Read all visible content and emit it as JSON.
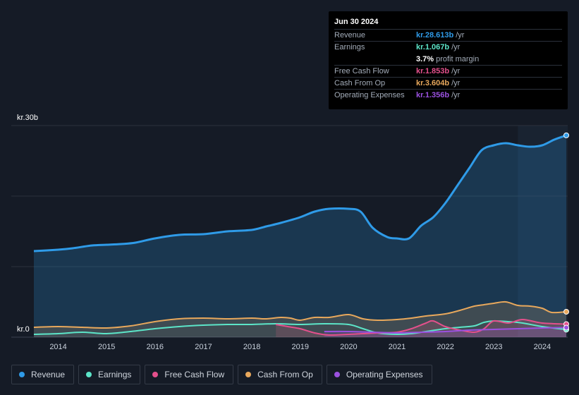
{
  "tooltip": {
    "date": "Jun 30 2024",
    "rows": [
      {
        "label": "Revenue",
        "value": "kr.28.613b",
        "unit": "/yr",
        "color": "#2f9be8"
      },
      {
        "label": "Earnings",
        "value": "kr.1.067b",
        "unit": "/yr",
        "color": "#5ce5c8"
      },
      {
        "label": "",
        "value": "3.7%",
        "unit": "profit margin",
        "color": "#ffffff"
      },
      {
        "label": "Free Cash Flow",
        "value": "kr.1.853b",
        "unit": "/yr",
        "color": "#e4508c"
      },
      {
        "label": "Cash From Op",
        "value": "kr.3.604b",
        "unit": "/yr",
        "color": "#e8a85c"
      },
      {
        "label": "Operating Expenses",
        "value": "kr.1.356b",
        "unit": "/yr",
        "color": "#9b51e0"
      }
    ]
  },
  "legend": [
    {
      "label": "Revenue",
      "color": "#2f9be8"
    },
    {
      "label": "Earnings",
      "color": "#5ce5c8"
    },
    {
      "label": "Free Cash Flow",
      "color": "#e4508c"
    },
    {
      "label": "Cash From Op",
      "color": "#e8a85c"
    },
    {
      "label": "Operating Expenses",
      "color": "#9b51e0"
    }
  ],
  "chart_data": {
    "type": "area",
    "y_top_label": "kr.30b",
    "y_bottom_label": "kr.0",
    "ylim": [
      0,
      30
    ],
    "xlim": [
      2013.5,
      2024.5
    ],
    "x_ticks": [
      "2014",
      "2015",
      "2016",
      "2017",
      "2018",
      "2019",
      "2020",
      "2021",
      "2022",
      "2023",
      "2024"
    ],
    "highlight_from": 2023.5,
    "series": [
      {
        "name": "Revenue",
        "color": "#2f9be8",
        "fill": true,
        "x": [
          2013.5,
          2014.0,
          2014.3,
          2014.7,
          2015.0,
          2015.3,
          2015.6,
          2016.0,
          2016.5,
          2017.0,
          2017.5,
          2018.0,
          2018.3,
          2018.6,
          2019.0,
          2019.3,
          2019.6,
          2020.0,
          2020.25,
          2020.5,
          2020.8,
          2021.0,
          2021.25,
          2021.5,
          2021.75,
          2022.0,
          2022.25,
          2022.5,
          2022.75,
          2023.0,
          2023.25,
          2023.5,
          2023.75,
          2024.0,
          2024.25,
          2024.5
        ],
        "values": [
          12.2,
          12.4,
          12.6,
          13.0,
          13.1,
          13.2,
          13.4,
          14.0,
          14.5,
          14.6,
          15.0,
          15.2,
          15.7,
          16.2,
          17.0,
          17.8,
          18.2,
          18.2,
          17.8,
          15.5,
          14.2,
          14.0,
          14.0,
          15.8,
          17.0,
          19.0,
          21.5,
          24.0,
          26.5,
          27.2,
          27.5,
          27.2,
          27.0,
          27.2,
          28.0,
          28.613
        ]
      },
      {
        "name": "Earnings",
        "color": "#5ce5c8",
        "fill": false,
        "x": [
          2013.5,
          2014.0,
          2014.5,
          2015.0,
          2015.5,
          2016.0,
          2016.5,
          2017.0,
          2017.5,
          2018.0,
          2018.5,
          2019.0,
          2019.5,
          2020.0,
          2020.3,
          2020.6,
          2021.0,
          2021.3,
          2021.6,
          2022.0,
          2022.3,
          2022.6,
          2022.8,
          2023.0,
          2023.3,
          2023.6,
          2024.0,
          2024.5
        ],
        "values": [
          0.4,
          0.5,
          0.7,
          0.5,
          0.8,
          1.2,
          1.5,
          1.7,
          1.8,
          1.8,
          1.9,
          1.8,
          1.9,
          1.8,
          1.2,
          0.6,
          0.4,
          0.5,
          0.8,
          1.2,
          1.4,
          1.6,
          2.1,
          2.3,
          2.2,
          2.0,
          1.5,
          1.067
        ]
      },
      {
        "name": "Free Cash Flow",
        "color": "#e4508c",
        "fill": true,
        "x": [
          2018.5,
          2018.75,
          2019.0,
          2019.3,
          2019.6,
          2020.0,
          2020.3,
          2020.6,
          2021.0,
          2021.3,
          2021.6,
          2021.75,
          2022.0,
          2022.3,
          2022.6,
          2022.8,
          2023.0,
          2023.3,
          2023.6,
          2024.0,
          2024.5
        ],
        "values": [
          1.8,
          1.5,
          1.2,
          0.6,
          0.3,
          0.4,
          0.5,
          0.6,
          0.7,
          1.2,
          2.0,
          2.3,
          1.5,
          1.0,
          0.7,
          1.2,
          2.3,
          2.0,
          2.5,
          2.0,
          1.853
        ]
      },
      {
        "name": "Cash From Op",
        "color": "#e8a85c",
        "fill": true,
        "x": [
          2013.5,
          2014.0,
          2014.5,
          2015.0,
          2015.5,
          2016.0,
          2016.5,
          2017.0,
          2017.5,
          2018.0,
          2018.3,
          2018.6,
          2018.8,
          2019.0,
          2019.3,
          2019.6,
          2020.0,
          2020.3,
          2020.6,
          2021.0,
          2021.3,
          2021.6,
          2022.0,
          2022.3,
          2022.6,
          2022.8,
          2023.0,
          2023.25,
          2023.5,
          2023.75,
          2024.0,
          2024.2,
          2024.5
        ],
        "values": [
          1.4,
          1.5,
          1.4,
          1.3,
          1.6,
          2.2,
          2.6,
          2.7,
          2.6,
          2.7,
          2.6,
          2.8,
          2.7,
          2.4,
          2.8,
          2.8,
          3.2,
          2.6,
          2.4,
          2.5,
          2.7,
          3.0,
          3.3,
          3.8,
          4.4,
          4.6,
          4.8,
          5.0,
          4.5,
          4.4,
          4.1,
          3.5,
          3.604
        ]
      },
      {
        "name": "Operating Expenses",
        "color": "#9b51e0",
        "fill": true,
        "x": [
          2019.5,
          2020.0,
          2020.5,
          2021.0,
          2021.5,
          2022.0,
          2022.5,
          2023.0,
          2023.5,
          2024.0,
          2024.5
        ],
        "values": [
          0.8,
          0.8,
          0.7,
          0.6,
          0.7,
          0.8,
          1.0,
          1.1,
          1.2,
          1.3,
          1.356
        ]
      }
    ]
  }
}
